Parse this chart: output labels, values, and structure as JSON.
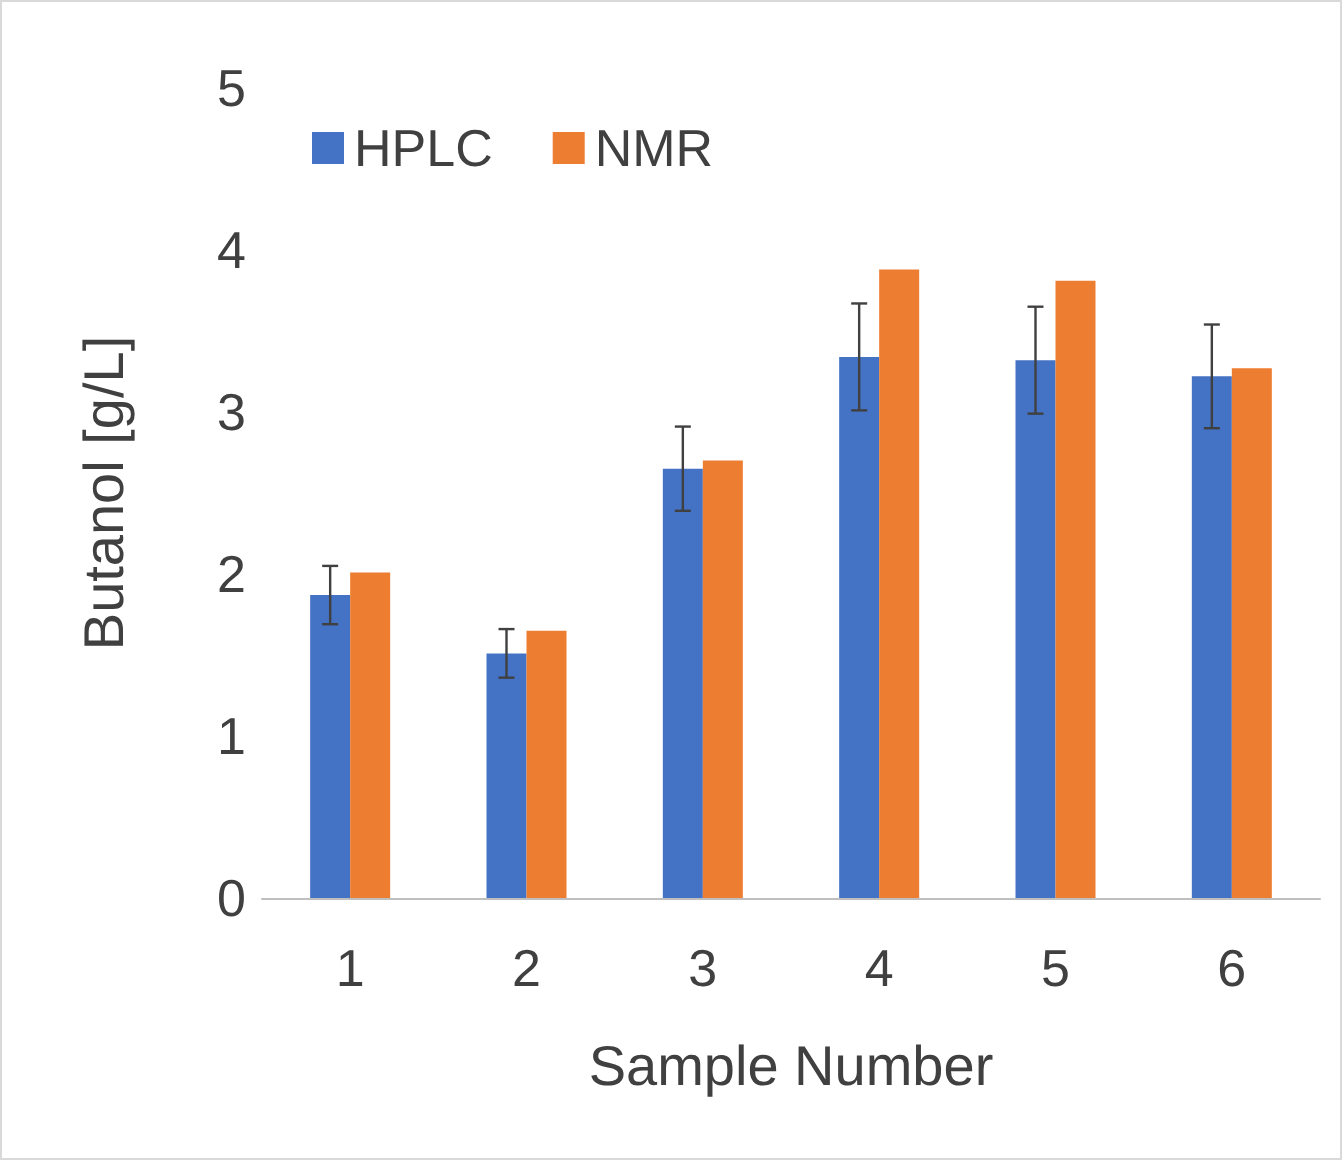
{
  "chart_data": {
    "type": "bar",
    "xlabel": "Sample Number",
    "ylabel": "Butanol [g/L]",
    "categories": [
      "1",
      "2",
      "3",
      "4",
      "5",
      "6"
    ],
    "series": [
      {
        "name": "HPLC",
        "color": "#4472c4",
        "values": [
          1.87,
          1.51,
          2.65,
          3.34,
          3.32,
          3.22
        ],
        "errors": [
          0.18,
          0.15,
          0.26,
          0.33,
          0.33,
          0.32
        ]
      },
      {
        "name": "NMR",
        "color": "#ed7d31",
        "values": [
          2.01,
          1.65,
          2.7,
          3.88,
          3.81,
          3.27
        ]
      }
    ],
    "ylim": [
      0,
      5
    ],
    "yticks": [
      0,
      1,
      2,
      3,
      4,
      5
    ],
    "grid": false,
    "legend": "top left"
  }
}
